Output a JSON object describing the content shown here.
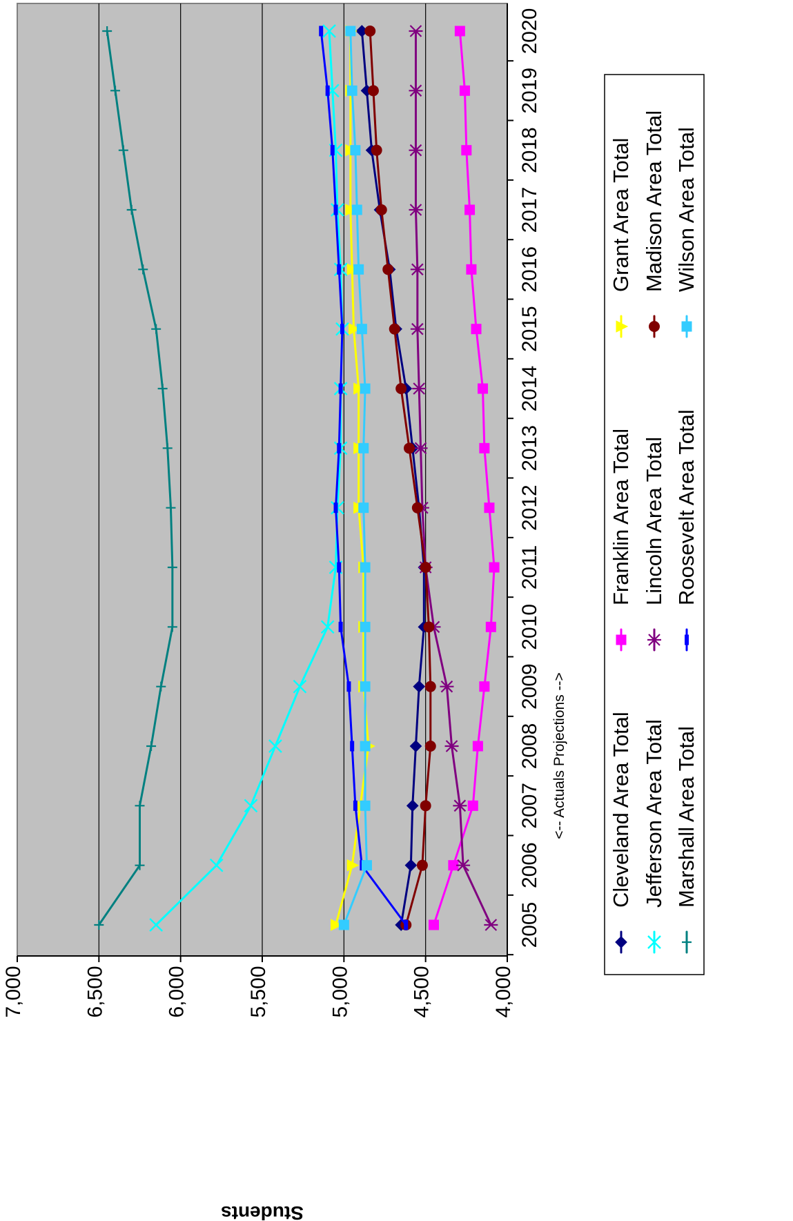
{
  "chart_data": {
    "type": "line",
    "title": "",
    "xlabel": "",
    "ylabel": "Students",
    "annotation": "<-- Actuals    Projections -->",
    "x": [
      2005,
      2006,
      2007,
      2008,
      2009,
      2010,
      2011,
      2012,
      2013,
      2014,
      2015,
      2016,
      2017,
      2018,
      2019,
      2020
    ],
    "x_tick_labels": [
      "2005",
      "2006",
      "2007",
      "2008",
      "2009",
      "2010",
      "2011",
      "2012",
      "2013",
      "2014",
      "2015",
      "2016",
      "2017",
      "2018",
      "2019",
      "2020"
    ],
    "ylim": [
      4000,
      7000
    ],
    "y_ticks": [
      4000,
      4500,
      5000,
      5500,
      6000,
      6500,
      7000
    ],
    "y_tick_labels": [
      "4,000",
      "4,500",
      "5,000",
      "5,500",
      "6,000",
      "6,500",
      "7,000"
    ],
    "gridlines": [
      4500,
      5000,
      5500,
      6000,
      6500
    ],
    "grid": true,
    "plot_background": "#c0c0c0",
    "legend_position": "right",
    "rotation_degrees": -90,
    "series": [
      {
        "name": "Cleveland Area Total",
        "color": "#000080",
        "marker": "diamond",
        "values": [
          4650,
          4590,
          4580,
          4560,
          4540,
          4510,
          4510,
          4540,
          4580,
          4620,
          4680,
          4720,
          4780,
          4830,
          4860,
          4890
        ]
      },
      {
        "name": "Franklin Area Total",
        "color": "#ff00ff",
        "marker": "square",
        "values": [
          4450,
          4330,
          4210,
          4180,
          4140,
          4100,
          4080,
          4110,
          4140,
          4150,
          4190,
          4220,
          4230,
          4250,
          4260,
          4290
        ]
      },
      {
        "name": "Grant Area Total",
        "color": "#ffff00",
        "marker": "triangle",
        "values": [
          5050,
          4950,
          4900,
          4850,
          4880,
          4880,
          4880,
          4910,
          4910,
          4910,
          4940,
          4950,
          4960,
          4960,
          4960,
          4960
        ]
      },
      {
        "name": "Jefferson Area Total",
        "color": "#00ffff",
        "marker": "x",
        "values": [
          6150,
          5780,
          5570,
          5420,
          5270,
          5100,
          5050,
          5040,
          5020,
          5020,
          5010,
          5020,
          5040,
          5050,
          5070,
          5090
        ]
      },
      {
        "name": "Lincoln Area Total",
        "color": "#800080",
        "marker": "star",
        "values": [
          4100,
          4270,
          4290,
          4340,
          4370,
          4450,
          4500,
          4520,
          4530,
          4540,
          4550,
          4550,
          4560,
          4560,
          4560,
          4560
        ]
      },
      {
        "name": "Madison Area Total",
        "color": "#800000",
        "marker": "circle",
        "values": [
          4620,
          4520,
          4500,
          4470,
          4470,
          4480,
          4500,
          4550,
          4600,
          4650,
          4690,
          4730,
          4770,
          4800,
          4820,
          4840
        ]
      },
      {
        "name": "Marshall Area Total",
        "color": "#008080",
        "marker": "plus",
        "values": [
          6500,
          6250,
          6250,
          6180,
          6120,
          6050,
          6050,
          6060,
          6080,
          6110,
          6150,
          6230,
          6300,
          6350,
          6400,
          6450
        ]
      },
      {
        "name": "Roosevelt Area Total",
        "color": "#0000ff",
        "marker": "bar",
        "values": [
          4620,
          4890,
          4930,
          4950,
          4970,
          5020,
          5030,
          5050,
          5030,
          5020,
          5010,
          5030,
          5050,
          5070,
          5100,
          5140
        ]
      },
      {
        "name": "Wilson Area Total",
        "color": "#33ccff",
        "marker": "square",
        "values": [
          5000,
          4860,
          4870,
          4870,
          4870,
          4870,
          4870,
          4880,
          4880,
          4870,
          4890,
          4910,
          4920,
          4930,
          4950,
          4960
        ]
      }
    ]
  }
}
